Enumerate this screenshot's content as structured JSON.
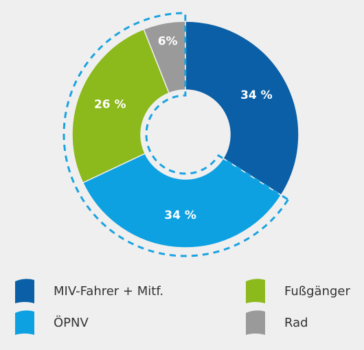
{
  "chart_data": {
    "type": "donut",
    "categories": [
      "MIV-Fahrer + Mitf.",
      "ÖPNV",
      "Fußgänger",
      "Rad"
    ],
    "values": [
      34,
      34,
      26,
      6
    ],
    "value_labels": [
      "34 %",
      "34 %",
      "26 %",
      "6%"
    ],
    "colors": [
      "#0a5fa6",
      "#0ea1e2",
      "#8cb91c",
      "#9a9a9a"
    ]
  }
}
